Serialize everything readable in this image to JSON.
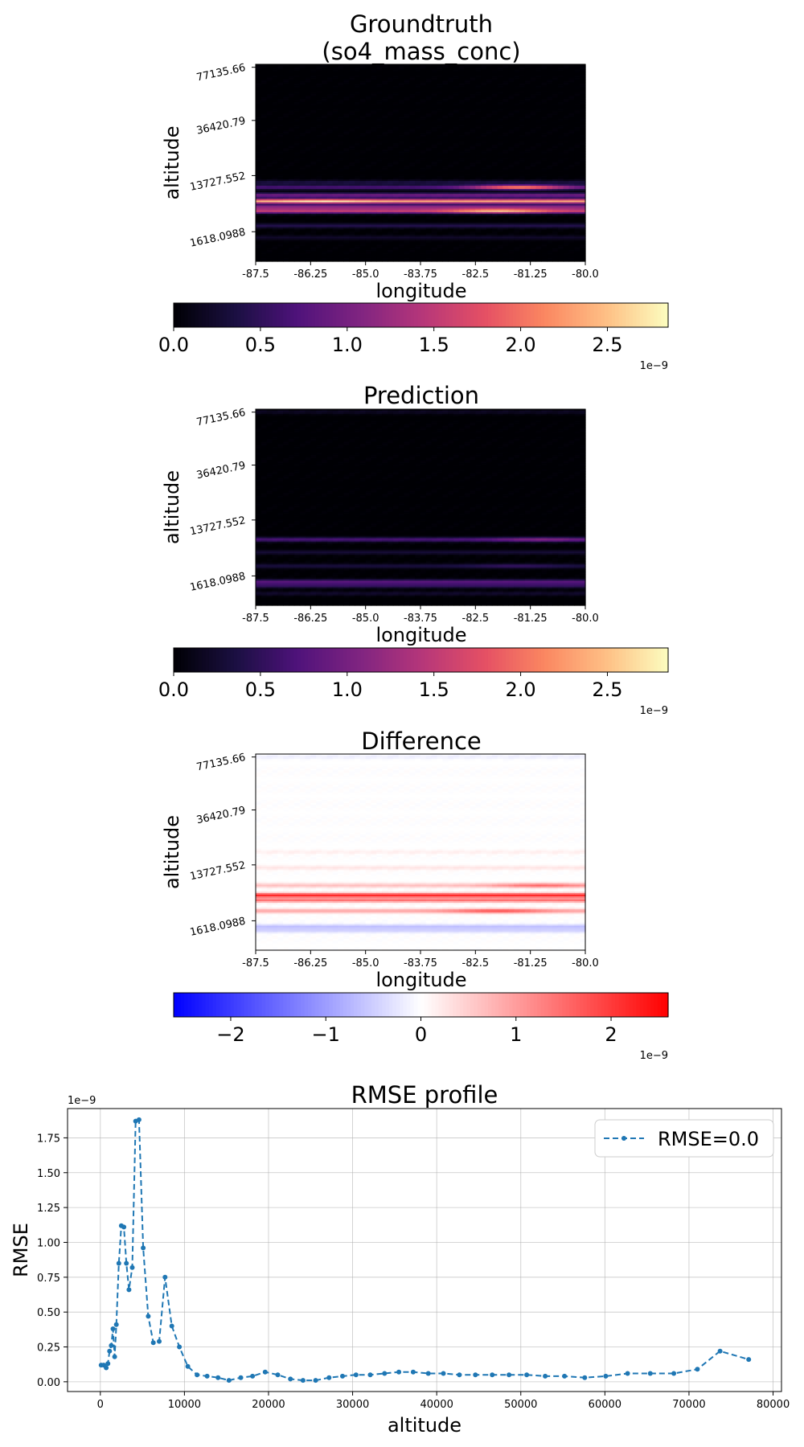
{
  "chart_data": [
    {
      "type": "heatmap",
      "title": "Groundtruth\n(so4_mass_conc)",
      "title_lines": [
        "Groundtruth",
        "(so4_mass_conc)"
      ],
      "xlabel": "longitude",
      "ylabel": "altitude",
      "x_ticks": [
        "-87.5",
        "-86.25",
        "-85.0",
        "-83.75",
        "-82.5",
        "-81.25",
        "-80.0"
      ],
      "y_ticks": [
        "77135.66",
        "36420.79",
        "13727.552",
        "1618.0988"
      ],
      "colormap": "magma",
      "colorbar": {
        "ticks": [
          "0.0",
          "0.5",
          "1.0",
          "1.5",
          "2.0",
          "2.5"
        ],
        "tick_values": [
          0.0,
          0.5,
          1.0,
          1.5,
          2.0,
          2.5
        ],
        "range": [
          0.0,
          2.85
        ],
        "offset_label": "1e−9"
      },
      "bands": [
        {
          "altitude_frac": 0.12,
          "intensity": 0.08
        },
        {
          "altitude_frac": 0.18,
          "intensity": 0.15
        },
        {
          "altitude_frac": 0.255,
          "intensity": 0.55,
          "hotspot_lon": -82.0,
          "hotspot": 0.9
        },
        {
          "altitude_frac": 0.275,
          "intensity": 0.42
        },
        {
          "altitude_frac": 0.305,
          "intensity": 0.85,
          "hotspot_lon": -86.0,
          "hotspot": 1.0
        },
        {
          "altitude_frac": 0.335,
          "intensity": 0.35
        },
        {
          "altitude_frac": 0.375,
          "intensity": 0.25,
          "hotspot_lon": -81.5,
          "hotspot": 0.8
        },
        {
          "altitude_frac": 0.4,
          "intensity": 0.12
        }
      ]
    },
    {
      "type": "heatmap",
      "title": "Prediction",
      "title_lines": [
        "Prediction"
      ],
      "xlabel": "longitude",
      "ylabel": "altitude",
      "x_ticks": [
        "-87.5",
        "-86.25",
        "-85.0",
        "-83.75",
        "-82.5",
        "-81.25",
        "-80.0"
      ],
      "y_ticks": [
        "77135.66",
        "36420.79",
        "13727.552",
        "1618.0988"
      ],
      "colormap": "magma",
      "colorbar": {
        "ticks": [
          "0.0",
          "0.5",
          "1.0",
          "1.5",
          "2.0",
          "2.5"
        ],
        "tick_values": [
          0.0,
          0.5,
          1.0,
          1.5,
          2.0,
          2.5
        ],
        "range": [
          0.0,
          2.85
        ],
        "offset_label": "1e−9"
      },
      "bands": [
        {
          "altitude_frac": 0.985,
          "intensity": 0.06
        },
        {
          "altitude_frac": 0.335,
          "intensity": 0.25,
          "hotspot_lon": -81.0,
          "hotspot": 0.4
        },
        {
          "altitude_frac": 0.27,
          "intensity": 0.1
        },
        {
          "altitude_frac": 0.2,
          "intensity": 0.12,
          "hotspot_lon": -81.6,
          "hotspot": 0.2
        },
        {
          "altitude_frac": 0.12,
          "intensity": 0.28
        },
        {
          "altitude_frac": 0.1,
          "intensity": 0.2
        },
        {
          "altitude_frac": 0.06,
          "intensity": 0.08
        }
      ]
    },
    {
      "type": "heatmap",
      "title": "Difference",
      "title_lines": [
        "Difference"
      ],
      "xlabel": "longitude",
      "ylabel": "altitude",
      "x_ticks": [
        "-87.5",
        "-86.25",
        "-85.0",
        "-83.75",
        "-82.5",
        "-81.25",
        "-80.0"
      ],
      "y_ticks": [
        "77135.66",
        "36420.79",
        "13727.552",
        "1618.0988"
      ],
      "colormap": "bwr",
      "colorbar": {
        "ticks": [
          "−2",
          "−1",
          "0",
          "1",
          "2"
        ],
        "tick_values": [
          -2,
          -1,
          0,
          1,
          2
        ],
        "range": [
          -2.6,
          2.6
        ],
        "offset_label": "1e−9"
      },
      "bands": [
        {
          "altitude_frac": 0.985,
          "intensity": -0.06
        },
        {
          "altitude_frac": 0.5,
          "intensity": 0.06
        },
        {
          "altitude_frac": 0.42,
          "intensity": 0.1
        },
        {
          "altitude_frac": 0.33,
          "intensity": 0.25,
          "hotspot_lon": -81.0,
          "hotspot": 0.6
        },
        {
          "altitude_frac": 0.28,
          "intensity": 0.85
        },
        {
          "altitude_frac": 0.255,
          "intensity": 0.55
        },
        {
          "altitude_frac": 0.2,
          "intensity": 0.35,
          "hotspot_lon": -82.0,
          "hotspot": 0.7
        },
        {
          "altitude_frac": 0.12,
          "intensity": -0.25
        },
        {
          "altitude_frac": 0.1,
          "intensity": -0.18
        }
      ]
    },
    {
      "type": "line",
      "title": "RMSE profile",
      "xlabel": "altitude",
      "ylabel": "RMSE",
      "y_offset_label": "1e−9",
      "xlim": [
        -3900,
        81000
      ],
      "ylim": [
        -0.07,
        1.96
      ],
      "x_ticks": [
        0,
        10000,
        20000,
        30000,
        40000,
        50000,
        60000,
        70000,
        80000
      ],
      "y_ticks": [
        0.0,
        0.25,
        0.5,
        0.75,
        1.0,
        1.25,
        1.5,
        1.75
      ],
      "y_tick_labels": [
        "0.00",
        "0.25",
        "0.50",
        "0.75",
        "1.00",
        "1.25",
        "1.50",
        "1.75"
      ],
      "grid": true,
      "legend_placement": "top-right",
      "color": "#1f77b4",
      "line_style": "dashed",
      "marker": "circle",
      "series": [
        {
          "name": "RMSE=0.0",
          "x": [
            100,
            400,
            700,
            900,
            1100,
            1300,
            1500,
            1700,
            1900,
            2200,
            2500,
            2800,
            3100,
            3400,
            3800,
            4200,
            4600,
            5100,
            5700,
            6300,
            7000,
            7700,
            8500,
            9400,
            10400,
            11500,
            12700,
            14000,
            15300,
            16700,
            18100,
            19600,
            21100,
            22600,
            24100,
            25600,
            27200,
            28800,
            30400,
            32100,
            33800,
            35500,
            37200,
            39000,
            40800,
            42700,
            44600,
            46600,
            48600,
            50700,
            52900,
            55200,
            57600,
            60100,
            62700,
            65400,
            68200,
            71000,
            73700,
            77100
          ],
          "y": [
            0.12,
            0.12,
            0.1,
            0.13,
            0.22,
            0.26,
            0.38,
            0.18,
            0.41,
            0.85,
            1.12,
            1.11,
            0.85,
            0.66,
            0.82,
            1.87,
            1.88,
            0.96,
            0.47,
            0.28,
            0.29,
            0.75,
            0.4,
            0.25,
            0.11,
            0.05,
            0.04,
            0.03,
            0.01,
            0.03,
            0.04,
            0.07,
            0.05,
            0.02,
            0.01,
            0.01,
            0.03,
            0.04,
            0.05,
            0.05,
            0.06,
            0.07,
            0.07,
            0.06,
            0.06,
            0.05,
            0.05,
            0.05,
            0.05,
            0.05,
            0.04,
            0.04,
            0.03,
            0.04,
            0.06,
            0.06,
            0.06,
            0.09,
            0.22,
            0.16
          ]
        }
      ]
    }
  ]
}
